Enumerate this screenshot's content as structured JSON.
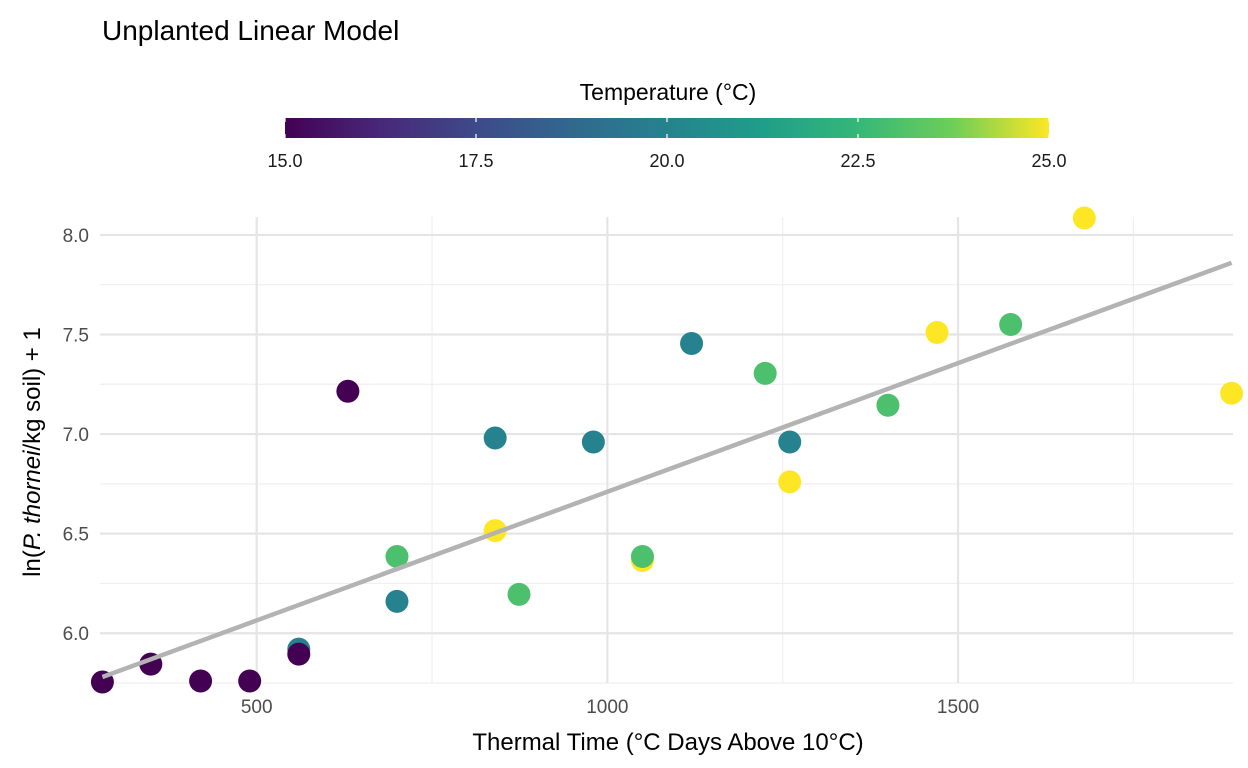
{
  "chart_data": {
    "type": "scatter",
    "title": "Unplanted Linear Model",
    "xlabel": "Thermal Time (°C Days Above 10°C)",
    "ylabel_parts": {
      "prefix": "ln(",
      "italic": "P. thornei",
      "suffix": "/kg soil) + 1"
    },
    "xlim": [
      278,
      1892
    ],
    "ylim": [
      5.75,
      8.09
    ],
    "x_ticks": [
      500,
      1000,
      1500
    ],
    "x_tick_labels": [
      "500",
      "1000",
      "1500"
    ],
    "x_minor": [
      250,
      750,
      1250,
      1750
    ],
    "y_ticks": [
      6.0,
      6.5,
      7.0,
      7.5,
      8.0
    ],
    "y_tick_labels": [
      "6.0",
      "6.5",
      "7.0",
      "7.5",
      "8.0"
    ],
    "y_minor": [
      5.75,
      6.25,
      6.75,
      7.25,
      7.75
    ],
    "grid": true,
    "legend": {
      "title": "Temperature (°C)",
      "placement": "top",
      "type": "colorbar",
      "range": [
        15,
        25
      ],
      "ticks": [
        15.0,
        17.5,
        20.0,
        22.5,
        25.0
      ],
      "tick_labels": [
        "15.0",
        "17.5",
        "20.0",
        "22.5",
        "25.0"
      ],
      "palette": "viridis",
      "colors": [
        "#440154",
        "#3b528b",
        "#21908c",
        "#5dc863",
        "#fde725"
      ]
    },
    "series": [
      {
        "name": "observations",
        "x": [
          280,
          349,
          420,
          490,
          560,
          560,
          630,
          700,
          700,
          840,
          840,
          874,
          980,
          1050,
          1050,
          1120,
          1225,
          1260,
          1260,
          1400,
          1470,
          1575,
          1680,
          1890
        ],
        "y": [
          5.755,
          5.845,
          5.76,
          5.76,
          5.92,
          5.895,
          7.215,
          6.385,
          6.16,
          6.98,
          6.515,
          6.195,
          6.96,
          6.365,
          6.385,
          7.455,
          7.305,
          6.96,
          6.76,
          7.145,
          7.51,
          7.55,
          8.085,
          7.205
        ],
        "temperature": [
          15,
          15,
          15,
          15,
          20,
          15,
          15,
          23,
          20,
          20,
          25,
          23,
          20,
          25,
          23,
          20,
          23,
          20,
          25,
          23,
          25,
          23,
          25,
          25
        ]
      }
    ],
    "fit_line": {
      "name": "linear fit",
      "color": "#b3b3b3",
      "x": [
        280,
        1890
      ],
      "y": [
        5.78,
        7.86
      ]
    }
  }
}
